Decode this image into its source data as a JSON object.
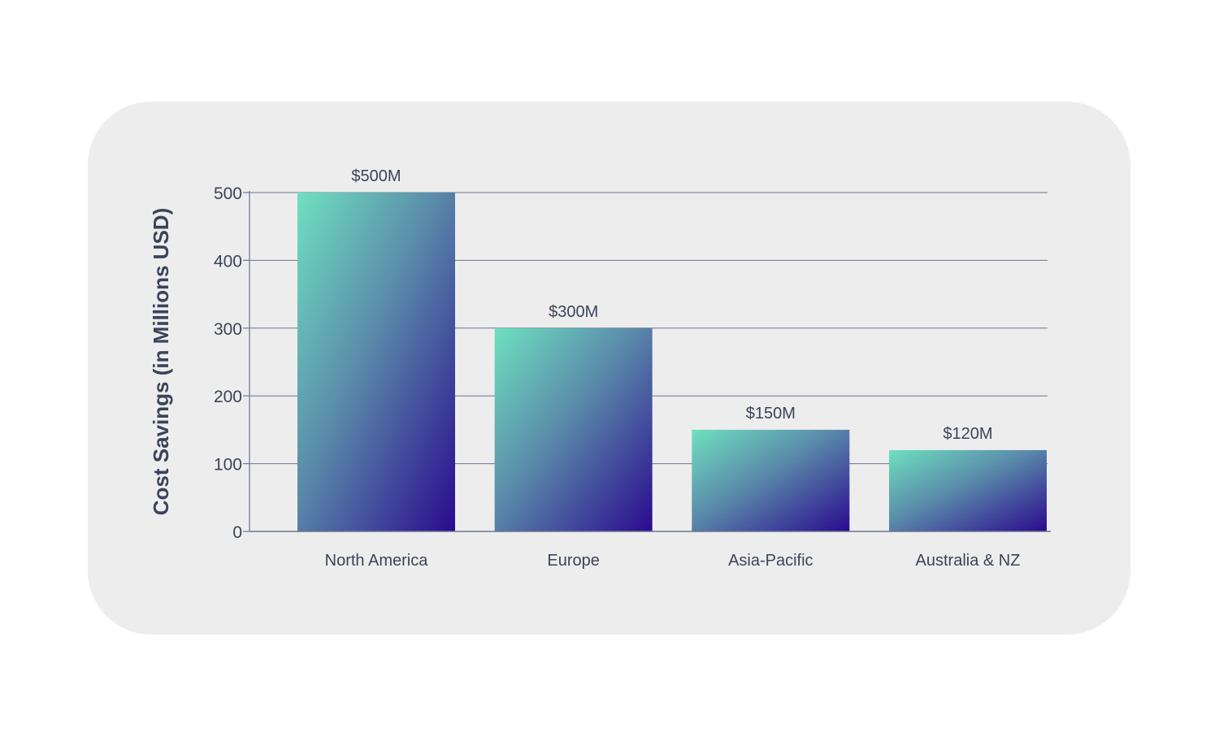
{
  "chart_data": {
    "type": "bar",
    "title": "",
    "xlabel": "",
    "ylabel": "Cost Savings (in Millions USD)",
    "categories": [
      "North America",
      "Europe",
      "Asia-Pacific",
      "Australia & NZ"
    ],
    "values": [
      500,
      300,
      150,
      120
    ],
    "data_labels": [
      "$500M",
      "$300M",
      "$150M",
      "$120M"
    ],
    "yticks": [
      0,
      100,
      200,
      300,
      400,
      500
    ],
    "ylim": [
      0,
      500
    ],
    "grid": true,
    "legend": "none",
    "colors": {
      "bar_gradient_start": "#6fe0c0",
      "bar_gradient_mid": "#5a8aaa",
      "bar_gradient_end": "#2a0a8e",
      "grid_line": "#6c7590",
      "text": "#3a4459",
      "card_background": "#ededed"
    }
  }
}
